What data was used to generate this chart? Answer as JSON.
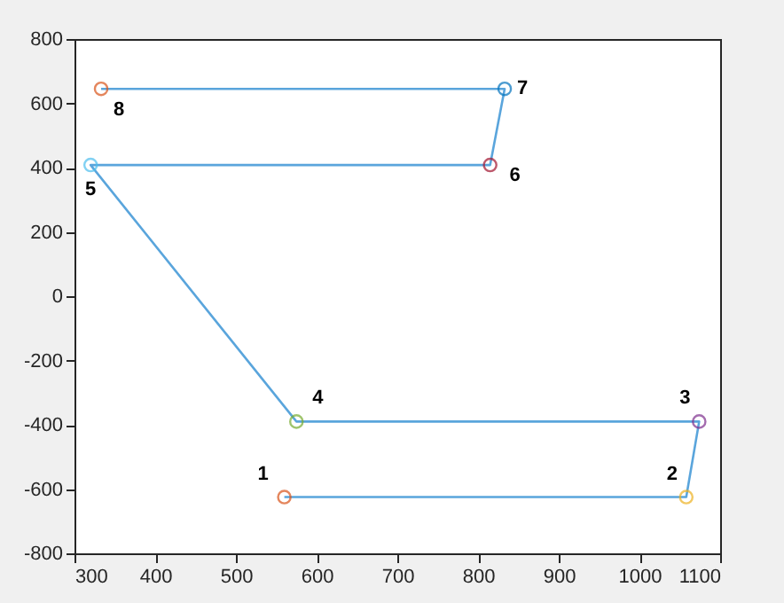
{
  "chart_data": {
    "type": "line",
    "xlim": [
      300,
      1100
    ],
    "ylim": [
      -800,
      800
    ],
    "xticks": [
      300,
      400,
      500,
      600,
      700,
      800,
      900,
      1000,
      1100
    ],
    "yticks": [
      -800,
      -600,
      -400,
      -200,
      0,
      200,
      400,
      600,
      800
    ],
    "grid": false,
    "series": [
      {
        "color": "#5aa5dc",
        "line_style": "solid",
        "marker": "none",
        "x": [
          560,
          1058,
          1074,
          575,
          320,
          815,
          833,
          333
        ],
        "values": [
          -625,
          -625,
          -390,
          -390,
          408,
          408,
          645,
          645
        ]
      },
      {
        "type": "scatter",
        "marker": "circle",
        "colors": [
          "#d95319",
          "#edb120",
          "#7e2f8e",
          "#77ac30",
          "#4dbeee",
          "#a2142f",
          "#0072bd",
          "#d95319"
        ],
        "x": [
          560,
          1058,
          1074,
          575,
          320,
          815,
          833,
          333
        ],
        "values": [
          -625,
          -625,
          -390,
          -390,
          408,
          408,
          645,
          645
        ]
      }
    ],
    "annotations": [
      {
        "text": "1",
        "x": 560,
        "y": -625
      },
      {
        "text": "2",
        "x": 1058,
        "y": -625
      },
      {
        "text": "3",
        "x": 1074,
        "y": -390
      },
      {
        "text": "4",
        "x": 575,
        "y": -390
      },
      {
        "text": "5",
        "x": 320,
        "y": 408
      },
      {
        "text": "6",
        "x": 815,
        "y": 408
      },
      {
        "text": "7",
        "x": 833,
        "y": 645
      },
      {
        "text": "8",
        "x": 333,
        "y": 645
      }
    ]
  }
}
